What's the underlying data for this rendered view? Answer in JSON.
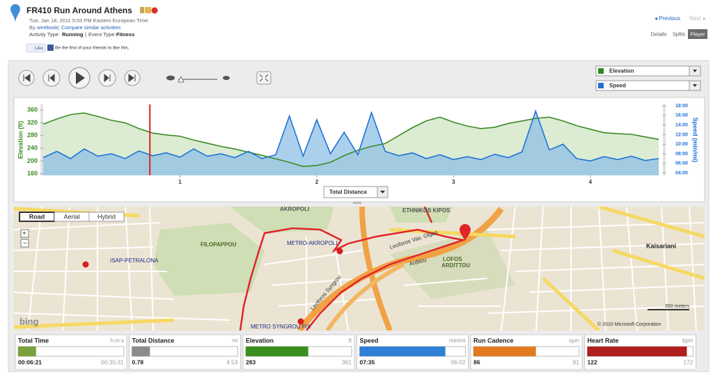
{
  "header": {
    "title": "FR410 Run Around Athens",
    "date": "Tue, Jan 18, 2011 5:03 PM Eastern European Time",
    "by": "By",
    "user": "wirebook",
    "compare": "Compare similar activities",
    "activity_type_label": "Activity Type:",
    "activity_type": "Running",
    "event_type_label": "Event Type:",
    "event_type": "Fitness",
    "like": "Like",
    "like_text": "Be the first of your friends to like this."
  },
  "nav": {
    "previous": "Previous",
    "next": "Next",
    "tabs": [
      "Details",
      "Splits",
      "Player"
    ],
    "active_tab": 2
  },
  "metric_selectors": [
    {
      "label": "Elevation",
      "color": "#2e8a1c"
    },
    {
      "label": "Speed",
      "color": "#1f6fd6"
    }
  ],
  "chart_data": {
    "type": "line",
    "xlabel": "Total Distance",
    "ylabel": "Elevation (ft)",
    "y2label": "Speed (min/mi)",
    "x": [
      0.0,
      0.1,
      0.2,
      0.3,
      0.4,
      0.5,
      0.6,
      0.7,
      0.8,
      0.9,
      1.0,
      1.1,
      1.2,
      1.3,
      1.4,
      1.5,
      1.6,
      1.7,
      1.8,
      1.9,
      2.0,
      2.1,
      2.2,
      2.3,
      2.4,
      2.5,
      2.6,
      2.7,
      2.8,
      2.9,
      3.0,
      3.1,
      3.2,
      3.3,
      3.4,
      3.5,
      3.6,
      3.7,
      3.8,
      3.9,
      4.0,
      4.1,
      4.2,
      4.3,
      4.4,
      4.5
    ],
    "series": [
      {
        "name": "Elevation",
        "color": "#3b8a23",
        "fill": "#cfe5c4",
        "values": [
          316,
          332,
          346,
          351,
          340,
          328,
          320,
          302,
          288,
          282,
          278,
          266,
          256,
          246,
          238,
          228,
          218,
          207,
          196,
          183,
          186,
          196,
          217,
          234,
          246,
          255,
          280,
          305,
          326,
          338,
          322,
          310,
          302,
          306,
          318,
          326,
          334,
          338,
          326,
          311,
          300,
          289,
          286,
          284,
          276,
          268
        ]
      },
      {
        "name": "Speed",
        "color": "#1f72d6",
        "fill": "#8fc0e6",
        "axis": "y2",
        "values": [
          7.2,
          8.5,
          7.0,
          9.0,
          7.5,
          8.0,
          7.0,
          8.6,
          7.6,
          8.2,
          7.3,
          9.0,
          7.5,
          8.0,
          7.2,
          8.5,
          7.0,
          7.8,
          15.9,
          7.5,
          15.1,
          8.0,
          12.5,
          7.8,
          16.6,
          8.5,
          7.6,
          8.2,
          7.0,
          7.8,
          6.8,
          7.4,
          6.8,
          7.9,
          7.2,
          8.4,
          16.9,
          8.8,
          10.0,
          7.0,
          6.5,
          7.4,
          6.8,
          7.5,
          6.6,
          7.0
        ]
      }
    ],
    "xlim": [
      0,
      4.53
    ],
    "xticks": [
      1,
      2,
      3,
      4
    ],
    "ylim": [
      155,
      378
    ],
    "yticks": [
      160,
      200,
      240,
      280,
      320,
      360
    ],
    "y2lim": [
      3.5,
      18.3
    ],
    "y2ticks": [
      {
        "value": 4,
        "label": "04:00"
      },
      {
        "value": 6,
        "label": "06:00"
      },
      {
        "value": 8,
        "label": "08:00"
      },
      {
        "value": 10,
        "label": "10:00"
      },
      {
        "value": 12,
        "label": "12:00"
      },
      {
        "value": 14,
        "label": "14:00"
      },
      {
        "value": 16,
        "label": "16:00"
      },
      {
        "value": 18,
        "label": "18:00"
      }
    ],
    "marker_x": 0.78,
    "marker_color": "#e02020"
  },
  "map": {
    "buttons": [
      "Road",
      "Aerial",
      "Hybrid"
    ],
    "active_button": 0,
    "labels": [
      "AKROPOLI",
      "ETHNIKOS KIPOS",
      "FILOPAPPOU",
      "METRO-AKROPOLI",
      "ISAP-PETRALONA",
      "LOFOS",
      "ARDITTOU",
      "Kaisariani",
      "METRO SYNGROU FIX",
      "Leoforos Syngrou",
      "Leoforos Vas. Olgas",
      "Arditou",
      "© 2010 Microsoft Corporation",
      "350 meters",
      "bing"
    ]
  },
  "stats": [
    {
      "name": "Total Time",
      "unit": "h:m:s",
      "value": "00:06:21",
      "total": "00:35:31",
      "color": "#7aa03c",
      "fill": 17
    },
    {
      "name": "Total Distance",
      "unit": "mi",
      "value": 0.78,
      "total": 4.53,
      "color": "#8c8c8c",
      "fill": 17
    },
    {
      "name": "Elevation",
      "unit": "ft",
      "value": 283,
      "total": 361,
      "color": "#3a8e1e",
      "fill": 59
    },
    {
      "name": "Speed",
      "unit": "min/mi",
      "value": "07:35",
      "total": "06:02",
      "color": "#2f7fd6",
      "fill": 81
    },
    {
      "name": "Run Cadence",
      "unit": "spm",
      "value": 86,
      "total": 91,
      "color": "#e07b20",
      "fill": 59
    },
    {
      "name": "Heart Rate",
      "unit": "bpm",
      "value": 122,
      "total": 172,
      "color": "#b01e1e",
      "fill": 94
    }
  ]
}
